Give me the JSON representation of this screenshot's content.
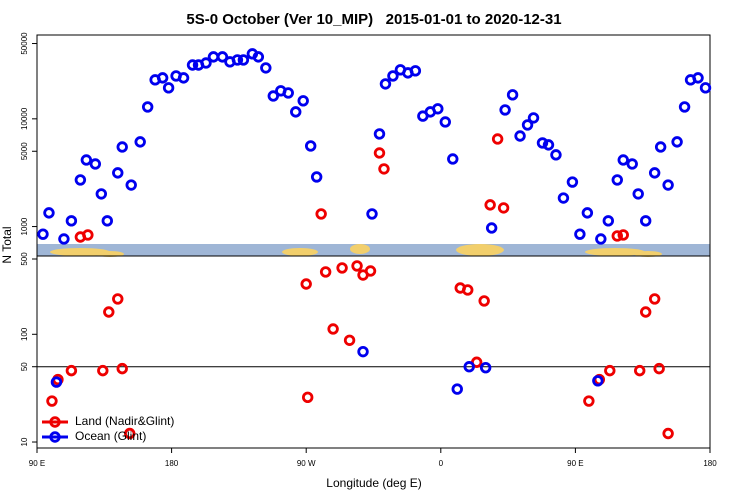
{
  "chart_data": {
    "type": "scatter",
    "title": "5S-0 October (Ver 10_MIP)   2015-01-01 to 2020-12-31",
    "xlabel": "Longitude (deg E)",
    "ylabel": "N Total",
    "log_y": true,
    "legend": "bottom-left",
    "hline": 50,
    "xlim": [
      90,
      540
    ],
    "ylim": [
      8.8,
      60000
    ],
    "xticks": [
      {
        "value": 90,
        "label": "90 E"
      },
      180,
      {
        "value": 270,
        "label": "90 W"
      },
      {
        "value": 360,
        "label": "0"
      },
      {
        "value": 450,
        "label": "90 E"
      },
      {
        "value": 540,
        "label": "180"
      }
    ],
    "yticks": [
      10,
      50,
      100,
      500,
      1000,
      5000,
      10000,
      50000
    ],
    "series": [
      {
        "name": "Land (Nadir&Glint)",
        "color": "#ee0000",
        "x": [
          100,
          104,
          113,
          119,
          124,
          134,
          138,
          144,
          147,
          152,
          271,
          270,
          280,
          283,
          288,
          294,
          299,
          304,
          308,
          313,
          319,
          322,
          373,
          378,
          384,
          389,
          393,
          398,
          402,
          459,
          466,
          473,
          478,
          482,
          493,
          497,
          503,
          506,
          512
        ],
        "values": [
          24,
          38,
          46,
          800,
          836,
          46,
          161,
          213,
          48,
          12,
          26,
          293,
          1310,
          379,
          112,
          413,
          88,
          431,
          355,
          387,
          4820,
          3430,
          269,
          258,
          55,
          204,
          1590,
          6500,
          1490,
          24,
          38,
          46,
          818,
          836,
          46,
          161,
          213,
          48,
          12
        ]
      },
      {
        "name": "Ocean (Glint)",
        "color": "#0000ee",
        "x": [
          94,
          98,
          108,
          113,
          119,
          123,
          129,
          133,
          137,
          144,
          147,
          153,
          159,
          164,
          169,
          174,
          178,
          183,
          188,
          194,
          198,
          203,
          208,
          214,
          219,
          224,
          228,
          234,
          238,
          243,
          248,
          253,
          258,
          263,
          268,
          273,
          277,
          314,
          319,
          323,
          328,
          333,
          338,
          343,
          348,
          353,
          358,
          363,
          368,
          394,
          403,
          408,
          413,
          418,
          422,
          428,
          432,
          437,
          442,
          448,
          453,
          458,
          467,
          472,
          478,
          482,
          488,
          492,
          497,
          503,
          507,
          512,
          518,
          523,
          527,
          532,
          537,
          103,
          308,
          371,
          379,
          390,
          465
        ],
        "values": [
          850,
          1340,
          767,
          1130,
          2710,
          4150,
          3810,
          2010,
          1130,
          3150,
          5480,
          2430,
          6110,
          12900,
          23000,
          24000,
          19400,
          25000,
          24000,
          31600,
          31600,
          33000,
          37600,
          37600,
          33800,
          35200,
          35200,
          40100,
          37600,
          29700,
          16300,
          18200,
          17400,
          11600,
          14700,
          5600,
          2890,
          1310,
          7240,
          21100,
          25000,
          28500,
          26700,
          27900,
          10600,
          11600,
          12400,
          9350,
          4240,
          970,
          12100,
          16700,
          6930,
          8780,
          10200,
          5970,
          5730,
          4630,
          1840,
          2590,
          850,
          1340,
          767,
          1130,
          2710,
          4150,
          3810,
          2010,
          1130,
          3150,
          5480,
          2430,
          6110,
          12900,
          23000,
          24000,
          19400,
          36,
          69,
          31,
          50,
          49,
          37
        ]
      }
    ]
  }
}
